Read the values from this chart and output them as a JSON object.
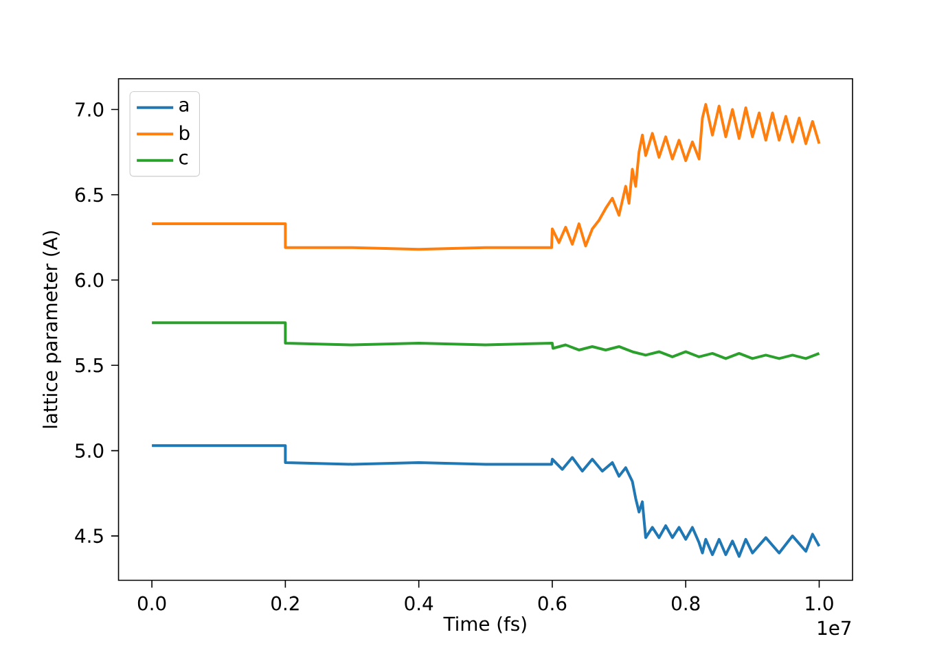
{
  "chart_data": {
    "type": "line",
    "xlabel": "Time (fs)",
    "ylabel": "lattice parameter (A)",
    "annotations": [
      "1e7"
    ],
    "xlim": [
      -0.05,
      1.05
    ],
    "ylim": [
      4.24,
      7.18
    ],
    "xticks": [
      {
        "value": 0,
        "label": "0.0"
      },
      0.2,
      0.4,
      0.6,
      0.8,
      {
        "value": 1,
        "label": "1.0"
      }
    ],
    "yticks": [
      4.5,
      {
        "value": 5,
        "label": "5.0"
      },
      5.5,
      {
        "value": 6,
        "label": "6.0"
      },
      6.5,
      {
        "value": 7,
        "label": "7.0"
      }
    ],
    "legend": "top left",
    "series": [
      {
        "name": "a",
        "color": "#1f77b4",
        "x": [
          0,
          0.2,
          0.2,
          0.3,
          0.4,
          0.5,
          0.599,
          0.6,
          0.615,
          0.63,
          0.645,
          0.66,
          0.675,
          0.69,
          0.7,
          0.71,
          0.72,
          0.725,
          0.73,
          0.735,
          0.74,
          0.75,
          0.76,
          0.77,
          0.78,
          0.79,
          0.8,
          0.81,
          0.82,
          0.825,
          0.83,
          0.84,
          0.85,
          0.86,
          0.87,
          0.88,
          0.89,
          0.9,
          0.92,
          0.94,
          0.96,
          0.98,
          0.99,
          1.0
        ],
        "values": [
          5.03,
          5.03,
          4.93,
          4.92,
          4.93,
          4.92,
          4.92,
          4.95,
          4.89,
          4.96,
          4.88,
          4.95,
          4.88,
          4.93,
          4.85,
          4.9,
          4.82,
          4.72,
          4.64,
          4.7,
          4.49,
          4.55,
          4.49,
          4.56,
          4.49,
          4.55,
          4.48,
          4.55,
          4.46,
          4.4,
          4.48,
          4.39,
          4.48,
          4.39,
          4.47,
          4.38,
          4.48,
          4.4,
          4.49,
          4.4,
          4.5,
          4.41,
          4.51,
          4.44
        ]
      },
      {
        "name": "b",
        "color": "#ff7f0e",
        "x": [
          0,
          0.2,
          0.2,
          0.3,
          0.4,
          0.5,
          0.599,
          0.6,
          0.61,
          0.62,
          0.63,
          0.64,
          0.65,
          0.66,
          0.67,
          0.68,
          0.69,
          0.7,
          0.71,
          0.715,
          0.72,
          0.725,
          0.73,
          0.735,
          0.74,
          0.75,
          0.76,
          0.77,
          0.78,
          0.79,
          0.8,
          0.81,
          0.82,
          0.825,
          0.83,
          0.84,
          0.85,
          0.86,
          0.87,
          0.88,
          0.89,
          0.9,
          0.91,
          0.92,
          0.93,
          0.94,
          0.95,
          0.96,
          0.97,
          0.98,
          0.99,
          1.0
        ],
        "values": [
          6.33,
          6.33,
          6.19,
          6.19,
          6.18,
          6.19,
          6.19,
          6.3,
          6.22,
          6.31,
          6.21,
          6.33,
          6.2,
          6.3,
          6.35,
          6.42,
          6.48,
          6.38,
          6.55,
          6.45,
          6.65,
          6.55,
          6.75,
          6.85,
          6.73,
          6.86,
          6.72,
          6.84,
          6.71,
          6.82,
          6.7,
          6.81,
          6.71,
          6.95,
          7.03,
          6.85,
          7.02,
          6.84,
          7.0,
          6.83,
          7.01,
          6.84,
          6.98,
          6.82,
          6.98,
          6.82,
          6.96,
          6.81,
          6.95,
          6.8,
          6.93,
          6.8
        ]
      },
      {
        "name": "c",
        "color": "#2ca02c",
        "x": [
          0,
          0.2,
          0.2,
          0.3,
          0.4,
          0.5,
          0.6,
          0.601,
          0.62,
          0.64,
          0.66,
          0.68,
          0.7,
          0.72,
          0.74,
          0.76,
          0.78,
          0.8,
          0.82,
          0.84,
          0.86,
          0.88,
          0.9,
          0.92,
          0.94,
          0.96,
          0.98,
          1.0
        ],
        "values": [
          5.75,
          5.75,
          5.63,
          5.62,
          5.63,
          5.62,
          5.63,
          5.6,
          5.62,
          5.59,
          5.61,
          5.59,
          5.61,
          5.58,
          5.56,
          5.58,
          5.55,
          5.58,
          5.55,
          5.57,
          5.54,
          5.57,
          5.54,
          5.56,
          5.54,
          5.56,
          5.54,
          5.57
        ]
      }
    ]
  }
}
